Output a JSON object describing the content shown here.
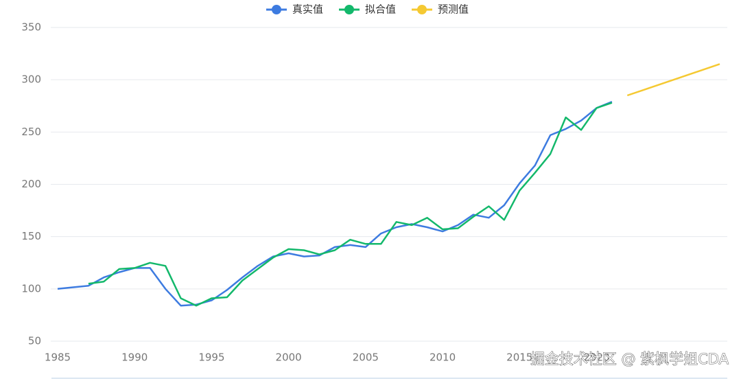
{
  "chart_data": {
    "type": "line",
    "x": [
      1985,
      1986,
      1987,
      1988,
      1989,
      1990,
      1991,
      1992,
      1993,
      1994,
      1995,
      1996,
      1997,
      1998,
      1999,
      2000,
      2001,
      2002,
      2003,
      2004,
      2005,
      2006,
      2007,
      2008,
      2009,
      2010,
      2011,
      2012,
      2013,
      2014,
      2015,
      2016,
      2017,
      2018,
      2019,
      2020,
      2021,
      2022,
      2023,
      2024,
      2025,
      2026,
      2027,
      2028
    ],
    "series": [
      {
        "name": "真实值",
        "color": "#3d7be0",
        "values": [
          100,
          101.5,
          103,
          111,
          116,
          120,
          120,
          100,
          84,
          85,
          89,
          99,
          111,
          122,
          131,
          134,
          131,
          132,
          140,
          142,
          140,
          153,
          159,
          162,
          159,
          155,
          161,
          171,
          168,
          180,
          201,
          218,
          247,
          253,
          261,
          273,
          279,
          null,
          null,
          null,
          null,
          null,
          null,
          null
        ]
      },
      {
        "name": "拟合值",
        "color": "#13b86b",
        "values": [
          null,
          null,
          105,
          107,
          119,
          120,
          125,
          122,
          91,
          84,
          91,
          92,
          108,
          119,
          130,
          138,
          137,
          133,
          137,
          147,
          143,
          143,
          164,
          161,
          168,
          157,
          158,
          169,
          179,
          166,
          194,
          211,
          229,
          264,
          252,
          273,
          278,
          null,
          null,
          null,
          null,
          null,
          null,
          null
        ]
      },
      {
        "name": "预测值",
        "color": "#f5c932",
        "values": [
          null,
          null,
          null,
          null,
          null,
          null,
          null,
          null,
          null,
          null,
          null,
          null,
          null,
          null,
          null,
          null,
          null,
          null,
          null,
          null,
          null,
          null,
          null,
          null,
          null,
          null,
          null,
          null,
          null,
          null,
          null,
          null,
          null,
          null,
          null,
          null,
          null,
          285,
          290,
          295,
          300,
          305,
          310,
          315
        ]
      }
    ],
    "xlim": [
      1985,
      2028
    ],
    "xticks": [
      1985,
      1990,
      1995,
      2000,
      2005,
      2010,
      2015,
      2020
    ],
    "ylim": [
      50,
      350
    ],
    "yticks": [
      50,
      100,
      150,
      200,
      250,
      300,
      350
    ],
    "grid": true,
    "watermark": "掘金技术社区 @ 紫枫学姐CDA"
  }
}
